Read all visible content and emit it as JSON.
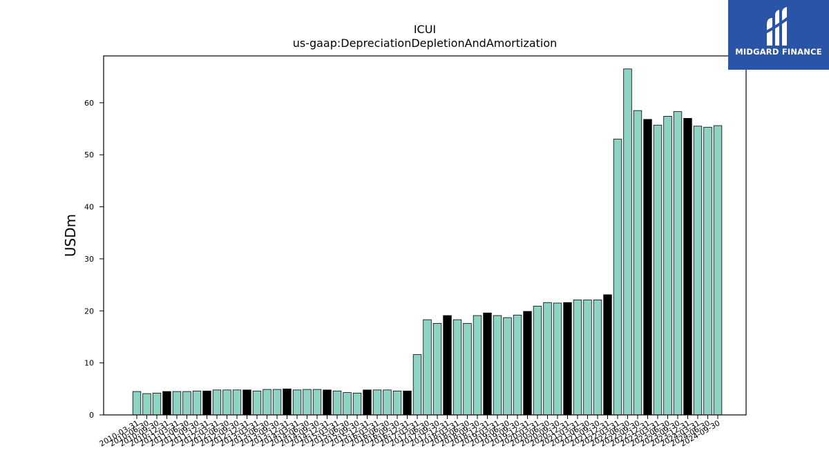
{
  "chart_data": {
    "type": "bar",
    "title": "ICUI",
    "subtitle": "us-gaap:DepreciationDepletionAndAmortization",
    "xlabel": "",
    "ylabel": "USDm",
    "ylim": [
      0,
      69
    ],
    "yticks": [
      0,
      10,
      20,
      30,
      40,
      50,
      60
    ],
    "grid": false,
    "categories": [
      "2010-03-31",
      "2010-06-30",
      "2010-09-30",
      "2010-12-31",
      "2011-03-31",
      "2011-06-30",
      "2011-09-30",
      "2011-12-31",
      "2012-03-31",
      "2012-06-30",
      "2012-09-30",
      "2012-12-31",
      "2013-03-31",
      "2013-06-30",
      "2013-09-30",
      "2013-12-31",
      "2014-03-31",
      "2014-06-30",
      "2014-09-30",
      "2014-12-31",
      "2015-03-31",
      "2015-06-30",
      "2015-09-30",
      "2015-12-31",
      "2016-03-31",
      "2016-06-30",
      "2016-09-30",
      "2016-12-31",
      "2017-03-31",
      "2017-06-30",
      "2017-09-30",
      "2017-12-31",
      "2018-03-31",
      "2018-06-30",
      "2018-09-30",
      "2018-12-31",
      "2019-03-31",
      "2019-06-30",
      "2019-09-30",
      "2019-12-31",
      "2020-03-31",
      "2020-06-30",
      "2020-09-30",
      "2020-12-31",
      "2021-03-31",
      "2021-06-30",
      "2021-09-30",
      "2021-12-31",
      "2022-03-31",
      "2022-06-30",
      "2022-09-30",
      "2022-12-31",
      "2023-03-31",
      "2023-06-30",
      "2023-09-30",
      "2023-12-31",
      "2024-03-31",
      "2024-06-30",
      "2024-09-30"
    ],
    "values": [
      4.5,
      4.1,
      4.2,
      4.5,
      4.5,
      4.5,
      4.6,
      4.6,
      4.8,
      4.8,
      4.8,
      4.8,
      4.6,
      4.9,
      4.9,
      5.0,
      4.8,
      4.9,
      4.9,
      4.8,
      4.6,
      4.3,
      4.2,
      4.8,
      4.8,
      4.8,
      4.6,
      4.6,
      11.6,
      18.3,
      17.6,
      19.1,
      18.3,
      17.6,
      19.1,
      19.6,
      19.1,
      18.7,
      19.2,
      19.9,
      20.9,
      21.6,
      21.5,
      21.6,
      22.1,
      22.1,
      22.1,
      23.1,
      53.0,
      66.5,
      58.5,
      56.8,
      55.7,
      57.4,
      58.3,
      57.0,
      55.5,
      55.3,
      55.6
    ],
    "highlight_every": 4,
    "colors": {
      "bar": "#8fd3c4",
      "highlight": "#000000",
      "edge": "#000000"
    }
  },
  "logo": {
    "text": "MIDGARD FINANCE",
    "background": "#2a55a6"
  }
}
